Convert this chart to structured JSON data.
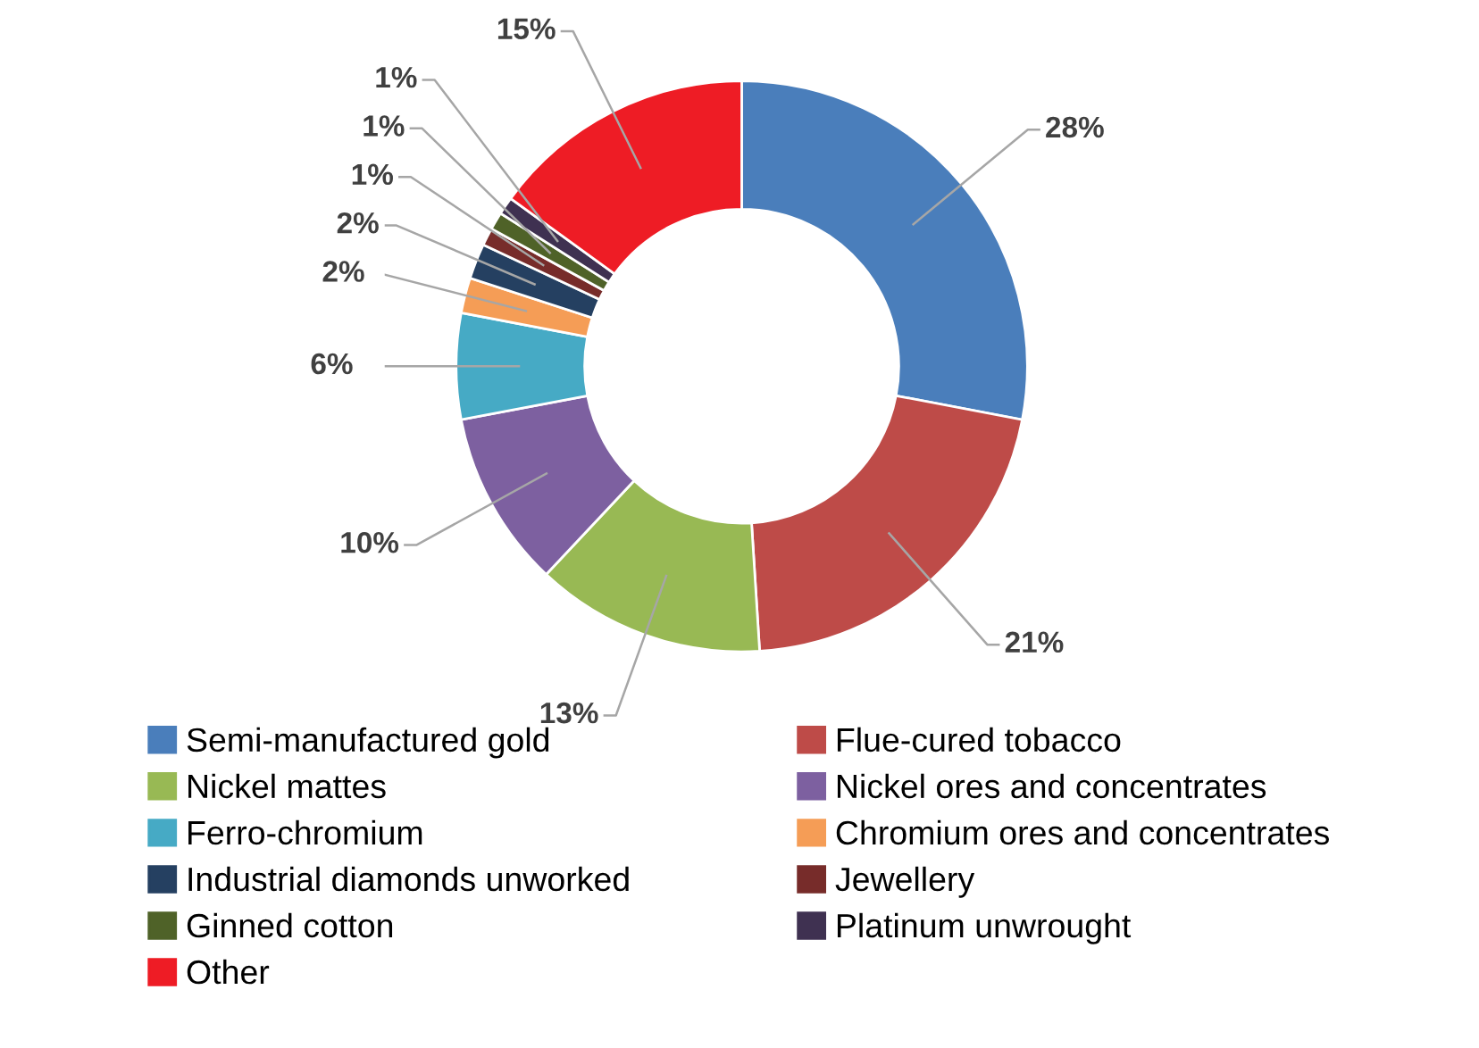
{
  "chart_data": {
    "type": "donut",
    "categories": [
      "Semi-manufactured gold",
      "Flue-cured tobacco",
      "Nickel mattes",
      "Nickel ores and concentrates",
      "Ferro-chromium",
      "Chromium ores and concentrates",
      "Industrial diamonds unworked",
      "Jewellery",
      "Ginned cotton",
      "Platinum unwrought",
      "Other"
    ],
    "values": [
      28,
      21,
      13,
      10,
      6,
      2,
      2,
      1,
      1,
      1,
      15
    ],
    "value_labels": [
      "28%",
      "21%",
      "13%",
      "10%",
      "6%",
      "2%",
      "2%",
      "1%",
      "1%",
      "1%",
      "15%"
    ],
    "colors": [
      "#4a7ebb",
      "#be4b48",
      "#98b954",
      "#7d60a0",
      "#46aac5",
      "#f59d56",
      "#254061",
      "#772c2a",
      "#4f6228",
      "#3f3151",
      "#ee1c25"
    ],
    "legend": "bottom"
  }
}
